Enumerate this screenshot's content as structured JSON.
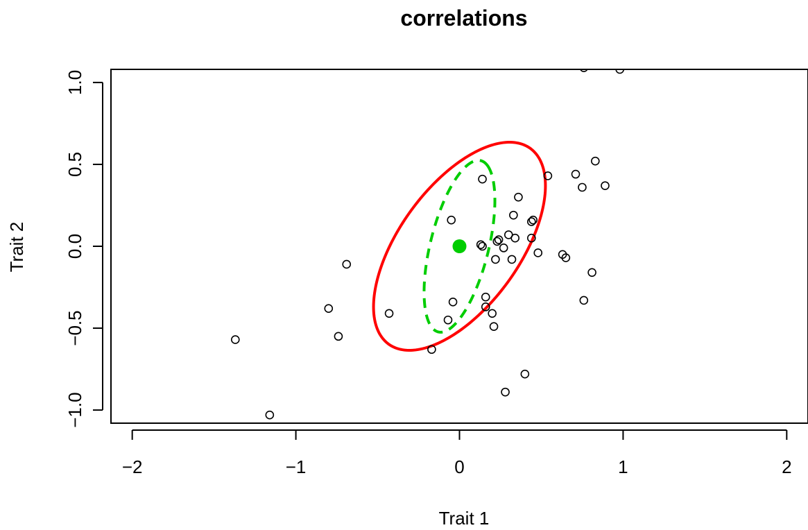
{
  "chart_data": {
    "type": "scatter",
    "title": "correlations",
    "xlabel": "Trait 1",
    "ylabel": "Trait 2",
    "xlim": [
      -2.13,
      2.13
    ],
    "ylim": [
      -1.08,
      1.08
    ],
    "x_ticks": [
      -2,
      -1,
      0,
      1,
      2
    ],
    "y_ticks": [
      -1.0,
      -0.5,
      0.0,
      0.5,
      1.0
    ],
    "x_tick_labels": [
      "−2",
      "−1",
      "0",
      "1",
      "2"
    ],
    "y_tick_labels": [
      "−1.0",
      "−0.5",
      "0.0",
      "0.5",
      "1.0"
    ],
    "grid": false,
    "legend": null,
    "series": [
      {
        "marker": "open-circle",
        "color": "#000000",
        "points": [
          [
            0.76,
            1.09
          ],
          [
            0.98,
            1.08
          ],
          [
            0.83,
            0.52
          ],
          [
            0.71,
            0.44
          ],
          [
            0.54,
            0.43
          ],
          [
            0.89,
            0.37
          ],
          [
            0.75,
            0.36
          ],
          [
            0.14,
            0.41
          ],
          [
            0.36,
            0.3
          ],
          [
            0.33,
            0.19
          ],
          [
            0.45,
            0.16
          ],
          [
            0.44,
            0.15
          ],
          [
            -0.05,
            0.16
          ],
          [
            0.3,
            0.07
          ],
          [
            0.34,
            0.05
          ],
          [
            0.44,
            0.05
          ],
          [
            0.24,
            0.04
          ],
          [
            0.23,
            0.03
          ],
          [
            0.13,
            0.01
          ],
          [
            0.14,
            0.0
          ],
          [
            0.27,
            -0.01
          ],
          [
            0.48,
            -0.04
          ],
          [
            0.63,
            -0.05
          ],
          [
            0.65,
            -0.07
          ],
          [
            0.22,
            -0.08
          ],
          [
            0.32,
            -0.08
          ],
          [
            -0.69,
            -0.11
          ],
          [
            0.81,
            -0.16
          ],
          [
            0.16,
            -0.31
          ],
          [
            -0.04,
            -0.34
          ],
          [
            0.76,
            -0.33
          ],
          [
            0.16,
            -0.37
          ],
          [
            -0.8,
            -0.38
          ],
          [
            -0.43,
            -0.41
          ],
          [
            0.2,
            -0.41
          ],
          [
            -0.07,
            -0.45
          ],
          [
            0.21,
            -0.49
          ],
          [
            -1.37,
            -0.57
          ],
          [
            -0.74,
            -0.55
          ],
          [
            -0.17,
            -0.63
          ],
          [
            0.4,
            -0.78
          ],
          [
            0.28,
            -0.89
          ],
          [
            -1.16,
            -1.03
          ]
        ]
      },
      {
        "name": "center",
        "marker": "filled-circle",
        "color": "#00cd00",
        "points": [
          [
            0.0,
            0.0
          ]
        ]
      }
    ],
    "ellipses": [
      {
        "style": "solid",
        "color": "#ff0000",
        "cx": 0.0,
        "cy": 0.0,
        "a": 1.13,
        "b": 0.48,
        "angle_deg": 24
      },
      {
        "style": "dashed",
        "color": "#00cd00",
        "cx": 0.0,
        "cy": 0.0,
        "a": 0.6,
        "b": 0.32,
        "angle_deg": 55
      }
    ]
  }
}
